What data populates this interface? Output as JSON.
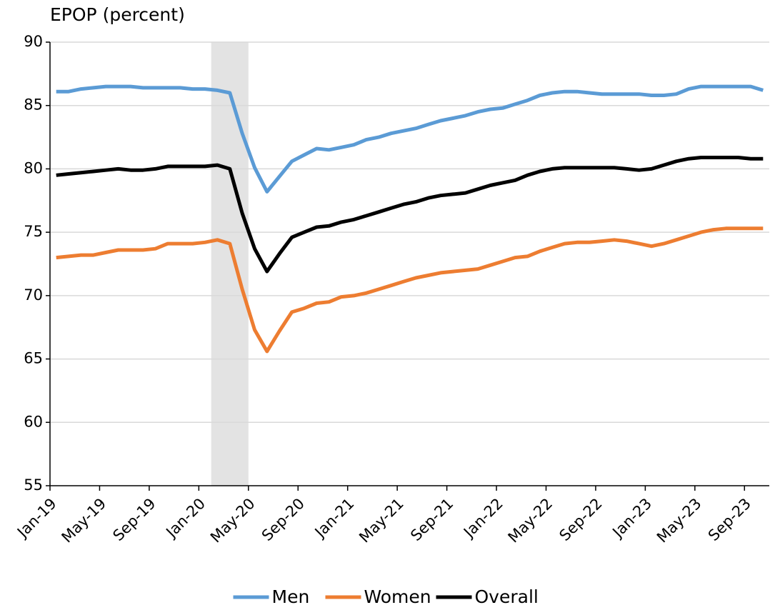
{
  "chart_data": {
    "type": "line",
    "title": "EPOP (percent)",
    "categories": [
      "Jan-19",
      null,
      null,
      null,
      "May-19",
      null,
      null,
      null,
      "Sep-19",
      null,
      null,
      null,
      "Jan-20",
      null,
      null,
      null,
      "May-20",
      null,
      null,
      null,
      "Sep-20",
      null,
      null,
      null,
      "Jan-21",
      null,
      null,
      null,
      "May-21",
      null,
      null,
      null,
      "Sep-21",
      null,
      null,
      null,
      "Jan-22",
      null,
      null,
      null,
      "May-22",
      null,
      null,
      null,
      "Sep-22",
      null,
      null,
      null,
      "Jan-23",
      null,
      null,
      null,
      "May-23",
      null,
      null,
      null,
      "Sep-23",
      null
    ],
    "series": [
      {
        "name": "Men",
        "color": "#5b9bd5",
        "values": [
          86.1,
          86.1,
          86.3,
          86.4,
          86.5,
          86.5,
          86.5,
          86.4,
          86.4,
          86.4,
          86.4,
          86.3,
          86.3,
          86.2,
          86.0,
          82.8,
          80.1,
          78.2,
          79.4,
          80.6,
          81.1,
          81.6,
          81.5,
          81.7,
          81.9,
          82.3,
          82.5,
          82.8,
          83.0,
          83.2,
          83.5,
          83.8,
          84.0,
          84.2,
          84.5,
          84.7,
          84.8,
          85.1,
          85.4,
          85.8,
          86.0,
          86.1,
          86.1,
          86.0,
          85.9,
          85.9,
          85.9,
          85.9,
          85.8,
          85.8,
          85.9,
          86.3,
          86.5,
          86.5,
          86.5,
          86.5,
          86.5,
          86.2
        ]
      },
      {
        "name": "Women",
        "color": "#ed7d31",
        "values": [
          73.0,
          73.1,
          73.2,
          73.2,
          73.4,
          73.6,
          73.6,
          73.6,
          73.7,
          74.1,
          74.1,
          74.1,
          74.2,
          74.4,
          74.1,
          70.5,
          67.3,
          65.6,
          67.2,
          68.7,
          69.0,
          69.4,
          69.5,
          69.9,
          70.0,
          70.2,
          70.5,
          70.8,
          71.1,
          71.4,
          71.6,
          71.8,
          71.9,
          72.0,
          72.1,
          72.4,
          72.7,
          73.0,
          73.1,
          73.5,
          73.8,
          74.1,
          74.2,
          74.2,
          74.3,
          74.4,
          74.3,
          74.1,
          73.9,
          74.1,
          74.4,
          74.7,
          75.0,
          75.2,
          75.3,
          75.3,
          75.3,
          75.3
        ]
      },
      {
        "name": "Overall",
        "color": "#000000",
        "values": [
          79.5,
          79.6,
          79.7,
          79.8,
          79.9,
          80.0,
          79.9,
          79.9,
          80.0,
          80.2,
          80.2,
          80.2,
          80.2,
          80.3,
          80.0,
          76.5,
          73.7,
          71.9,
          73.3,
          74.6,
          75.0,
          75.4,
          75.5,
          75.8,
          76.0,
          76.3,
          76.6,
          76.9,
          77.2,
          77.4,
          77.7,
          77.9,
          78.0,
          78.1,
          78.4,
          78.7,
          78.9,
          79.1,
          79.5,
          79.8,
          80.0,
          80.1,
          80.1,
          80.1,
          80.1,
          80.1,
          80.0,
          79.9,
          80.0,
          80.3,
          80.6,
          80.8,
          80.9,
          80.9,
          80.9,
          80.9,
          80.8,
          80.8
        ]
      }
    ],
    "shaded_range": {
      "start": 13,
      "end": 15,
      "color": "#e3e3e3"
    },
    "ylim": [
      55,
      90
    ],
    "yticks": [
      55,
      60,
      65,
      70,
      75,
      80,
      85,
      90
    ],
    "grid": true,
    "legend": "bottom"
  }
}
